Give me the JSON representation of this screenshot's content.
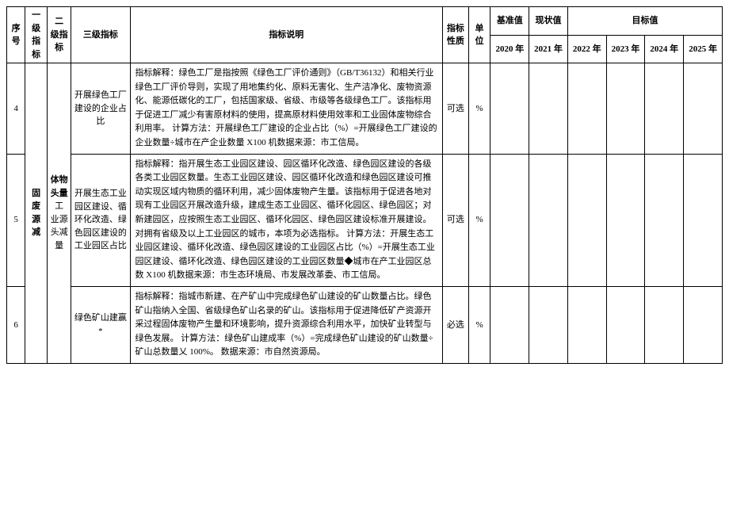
{
  "headers": {
    "seq": "序号",
    "level1": "一级指标",
    "level2": "二 级指标",
    "level3": "三级指标",
    "desc": "指标说明",
    "nature": "指标性质",
    "unit": "单位",
    "baseline": "基准值",
    "current": "现状值",
    "target": "目标值",
    "y2020": "2020 年",
    "y2021": "2021 年",
    "y2022": "2022 年",
    "y2023": "2023 年",
    "y2024": "2024 年",
    "y2025": "2025 年"
  },
  "level1_label": "固废源减",
  "level2_labels": {
    "a": "体物头量",
    "b": "工 业源头减量"
  },
  "rows": [
    {
      "seq": "4",
      "level3": "开展绿色工厂建设的企业占比",
      "desc": "指标解释：绿色工厂是指按照《绿色工厂评价通则》（GB/T36132）和相关行业绿色工厂评价导则，实现了用地集约化、原料无害化、生产洁净化、废物资源化、能源低碳化的工厂，包括国家级、省级、市级等各级绿色工厂。该指标用于促进工厂减少有害原材料的使用，提高原材料使用效率和工业固体废物综合利用率。\n计算方法：开展绿色工厂建设的企业占比（%）=开展绿色工厂建设的企业数量÷城市在产企业数量 X100 机数据来源：市工信局。",
      "nature": "可选",
      "unit": "%"
    },
    {
      "seq": "5",
      "level3": "开展生态工业园区建设、循环化改造、绿色园区建设的工业园区占比",
      "desc": "指标解释：指开展生态工业园区建设、园区循环化改造、绿色园区建设的各级各类工业园区数量。生态工业园区建设、园区循环化改造和绿色园区建设可推动实现区域内物质的循环利用，减少固体废物产生量。该指标用于促进各地对现有工业园区开展改造升级，建成生态工业园区、循环化园区、绿色园区；对新建园区，应按照生态工业园区、循环化园区、绿色园区建设标准开展建设。对拥有省级及以上工业园区的城市，本项为必选指标。\n计算方法：开展生态工业园区建设、循环化改造、绿色园区建设的工业园区占比（%）=开展生态工业园区建设、循环化改造、绿色园区建设的工业园区数量◆城市在产工业园区总数 X100 机数据来源：市生态环境局、市发展改革委、市工信局。",
      "nature": "可选",
      "unit": "%"
    },
    {
      "seq": "6",
      "level3": "绿色矿山建赢*",
      "desc": "指标解释：指城市新建、在产矿山中完成绿色矿山建设的矿山数量占比。绿色矿山指纳入全国、省级绿色矿山名录的矿山。该指标用于促进降低矿产资源开采过程固体废物产生量和环境影响，提升资源综合利用水平，加快矿业转型与绿色发展。\n计算方法：绿色矿山建成率（%）=完成绿色矿山建设的矿山数量÷矿山总数量乂 100%。\n数据来源：市自然资源局。",
      "nature": "必选",
      "unit": "%"
    }
  ]
}
